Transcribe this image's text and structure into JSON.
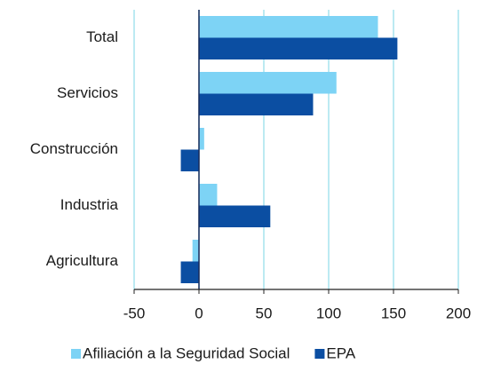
{
  "chart_data": {
    "type": "hbar",
    "categories": [
      "Total",
      "Servicios",
      "Construcción",
      "Industria",
      "Agricultura"
    ],
    "series": [
      {
        "name": "Afiliación a la Seguridad Social",
        "color": "#7dd3f5",
        "values": [
          138,
          106,
          4,
          14,
          -5
        ]
      },
      {
        "name": "EPA",
        "color": "#0b4ea2",
        "values": [
          153,
          88,
          -14,
          55,
          -14
        ]
      }
    ],
    "xlim": [
      -50,
      200
    ],
    "xticks": [
      -50,
      0,
      50,
      100,
      150,
      200
    ],
    "grid": true,
    "legend": "bottom"
  }
}
